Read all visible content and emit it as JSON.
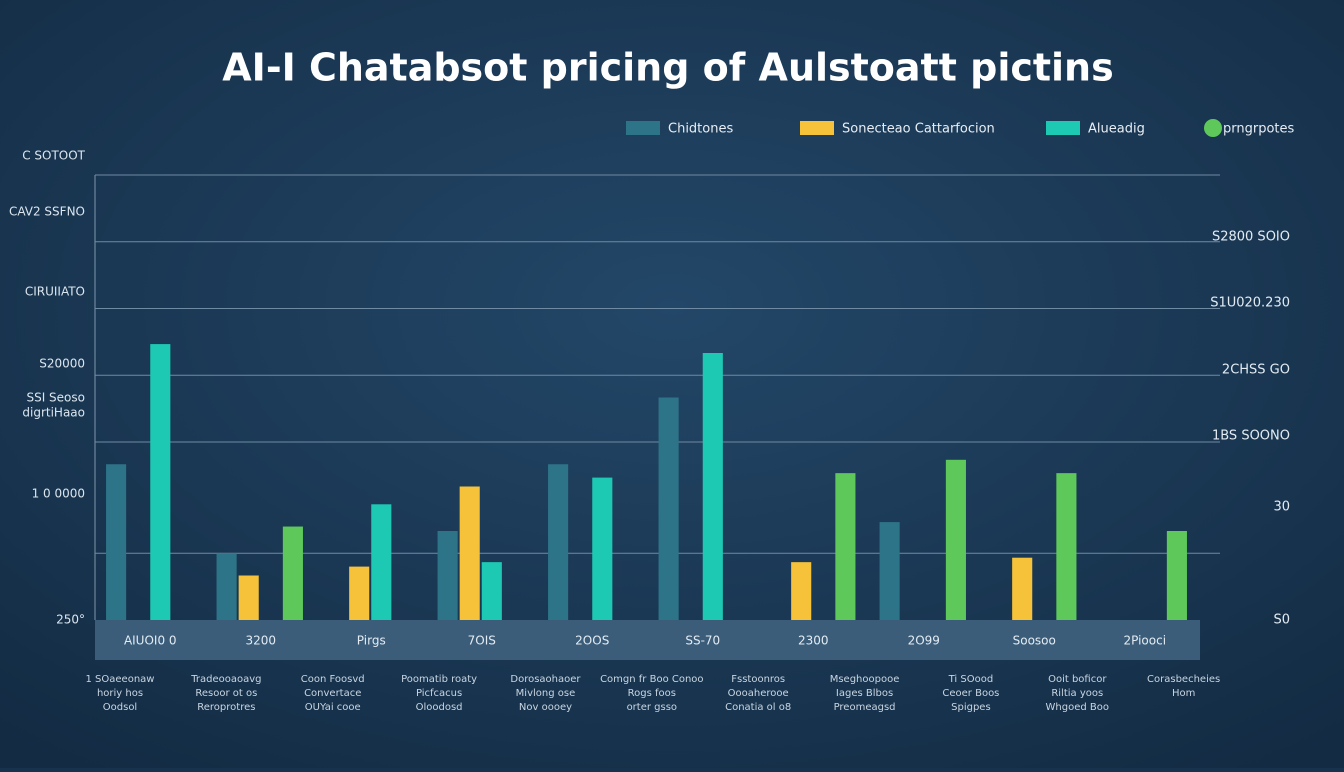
{
  "chart_data": {
    "type": "bar",
    "title": "AI-I   Chatabsot pricing of Aulstoatt pictins",
    "categories": [
      "AIUOI0 0",
      "3200",
      "Pirgs",
      "7OIS",
      "2OOS",
      "SS-70",
      "2300",
      "2O99",
      "Soosoo",
      "2Piooci"
    ],
    "series": [
      {
        "name": "Chidtones",
        "color": "#2e7488",
        "values": [
          35,
          15,
          0,
          20,
          35,
          50,
          0,
          22,
          0,
          0
        ]
      },
      {
        "name": "Sonecteao Cattarfocion",
        "color": "#f5c23a",
        "values": [
          0,
          10,
          12,
          30,
          0,
          0,
          13,
          0,
          14,
          0
        ]
      },
      {
        "name": "Alueadig",
        "color": "#1ec9b4",
        "values": [
          62,
          0,
          26,
          13,
          32,
          60,
          0,
          0,
          0,
          0
        ]
      },
      {
        "name": "prngrpotes",
        "color": "#5ec95a",
        "values": [
          0,
          21,
          0,
          0,
          0,
          0,
          33,
          36,
          33,
          20
        ]
      }
    ],
    "ylim": [
      0,
      100
    ],
    "yticks": [
      15,
      40,
      55,
      70,
      85,
      100
    ],
    "grid": true,
    "left_labels": [
      "C SOTOOT",
      "CAV2 SSFNO",
      "CIRUIIATO",
      "S20000",
      "SSI Seoso",
      "digrtiHaao",
      "1 0 0000",
      "250°"
    ],
    "right_labels": [
      "S2800 SOIO",
      "S1U020.230",
      "2CHSS GO",
      "1BS SOONO",
      "30",
      "S0"
    ],
    "footnotes": [
      [
        "1 SOaeeonaw",
        "horiy hos",
        "Oodsol"
      ],
      [
        "Tradeooaoavg",
        "Resoor ot os",
        "Reroprotres"
      ],
      [
        "Coon Foosvd",
        "Convertace",
        "OUYai cooe"
      ],
      [
        "Poomatib roaty",
        "Picfcacus",
        "Oloodosd"
      ],
      [
        "Dorosaohaoer",
        "Mivlong ose",
        "Nov oooey"
      ],
      [
        "Comgn fr Boo Conoo",
        "Rogs foos",
        "orter gsso"
      ],
      [
        "Fsstoonros",
        "Oooaherooe",
        "Conatia ol o8"
      ],
      [
        "Mseghoopooe",
        "Iages Blbos",
        "Preomeagsd"
      ],
      [
        "Ti SOood",
        "Ceoer Boos",
        "Spigpes"
      ],
      [
        "Ooit boficor",
        "Riltia yoos",
        "Whgoed Boo"
      ],
      [
        "Corasbecheies",
        "Hom"
      ]
    ]
  }
}
